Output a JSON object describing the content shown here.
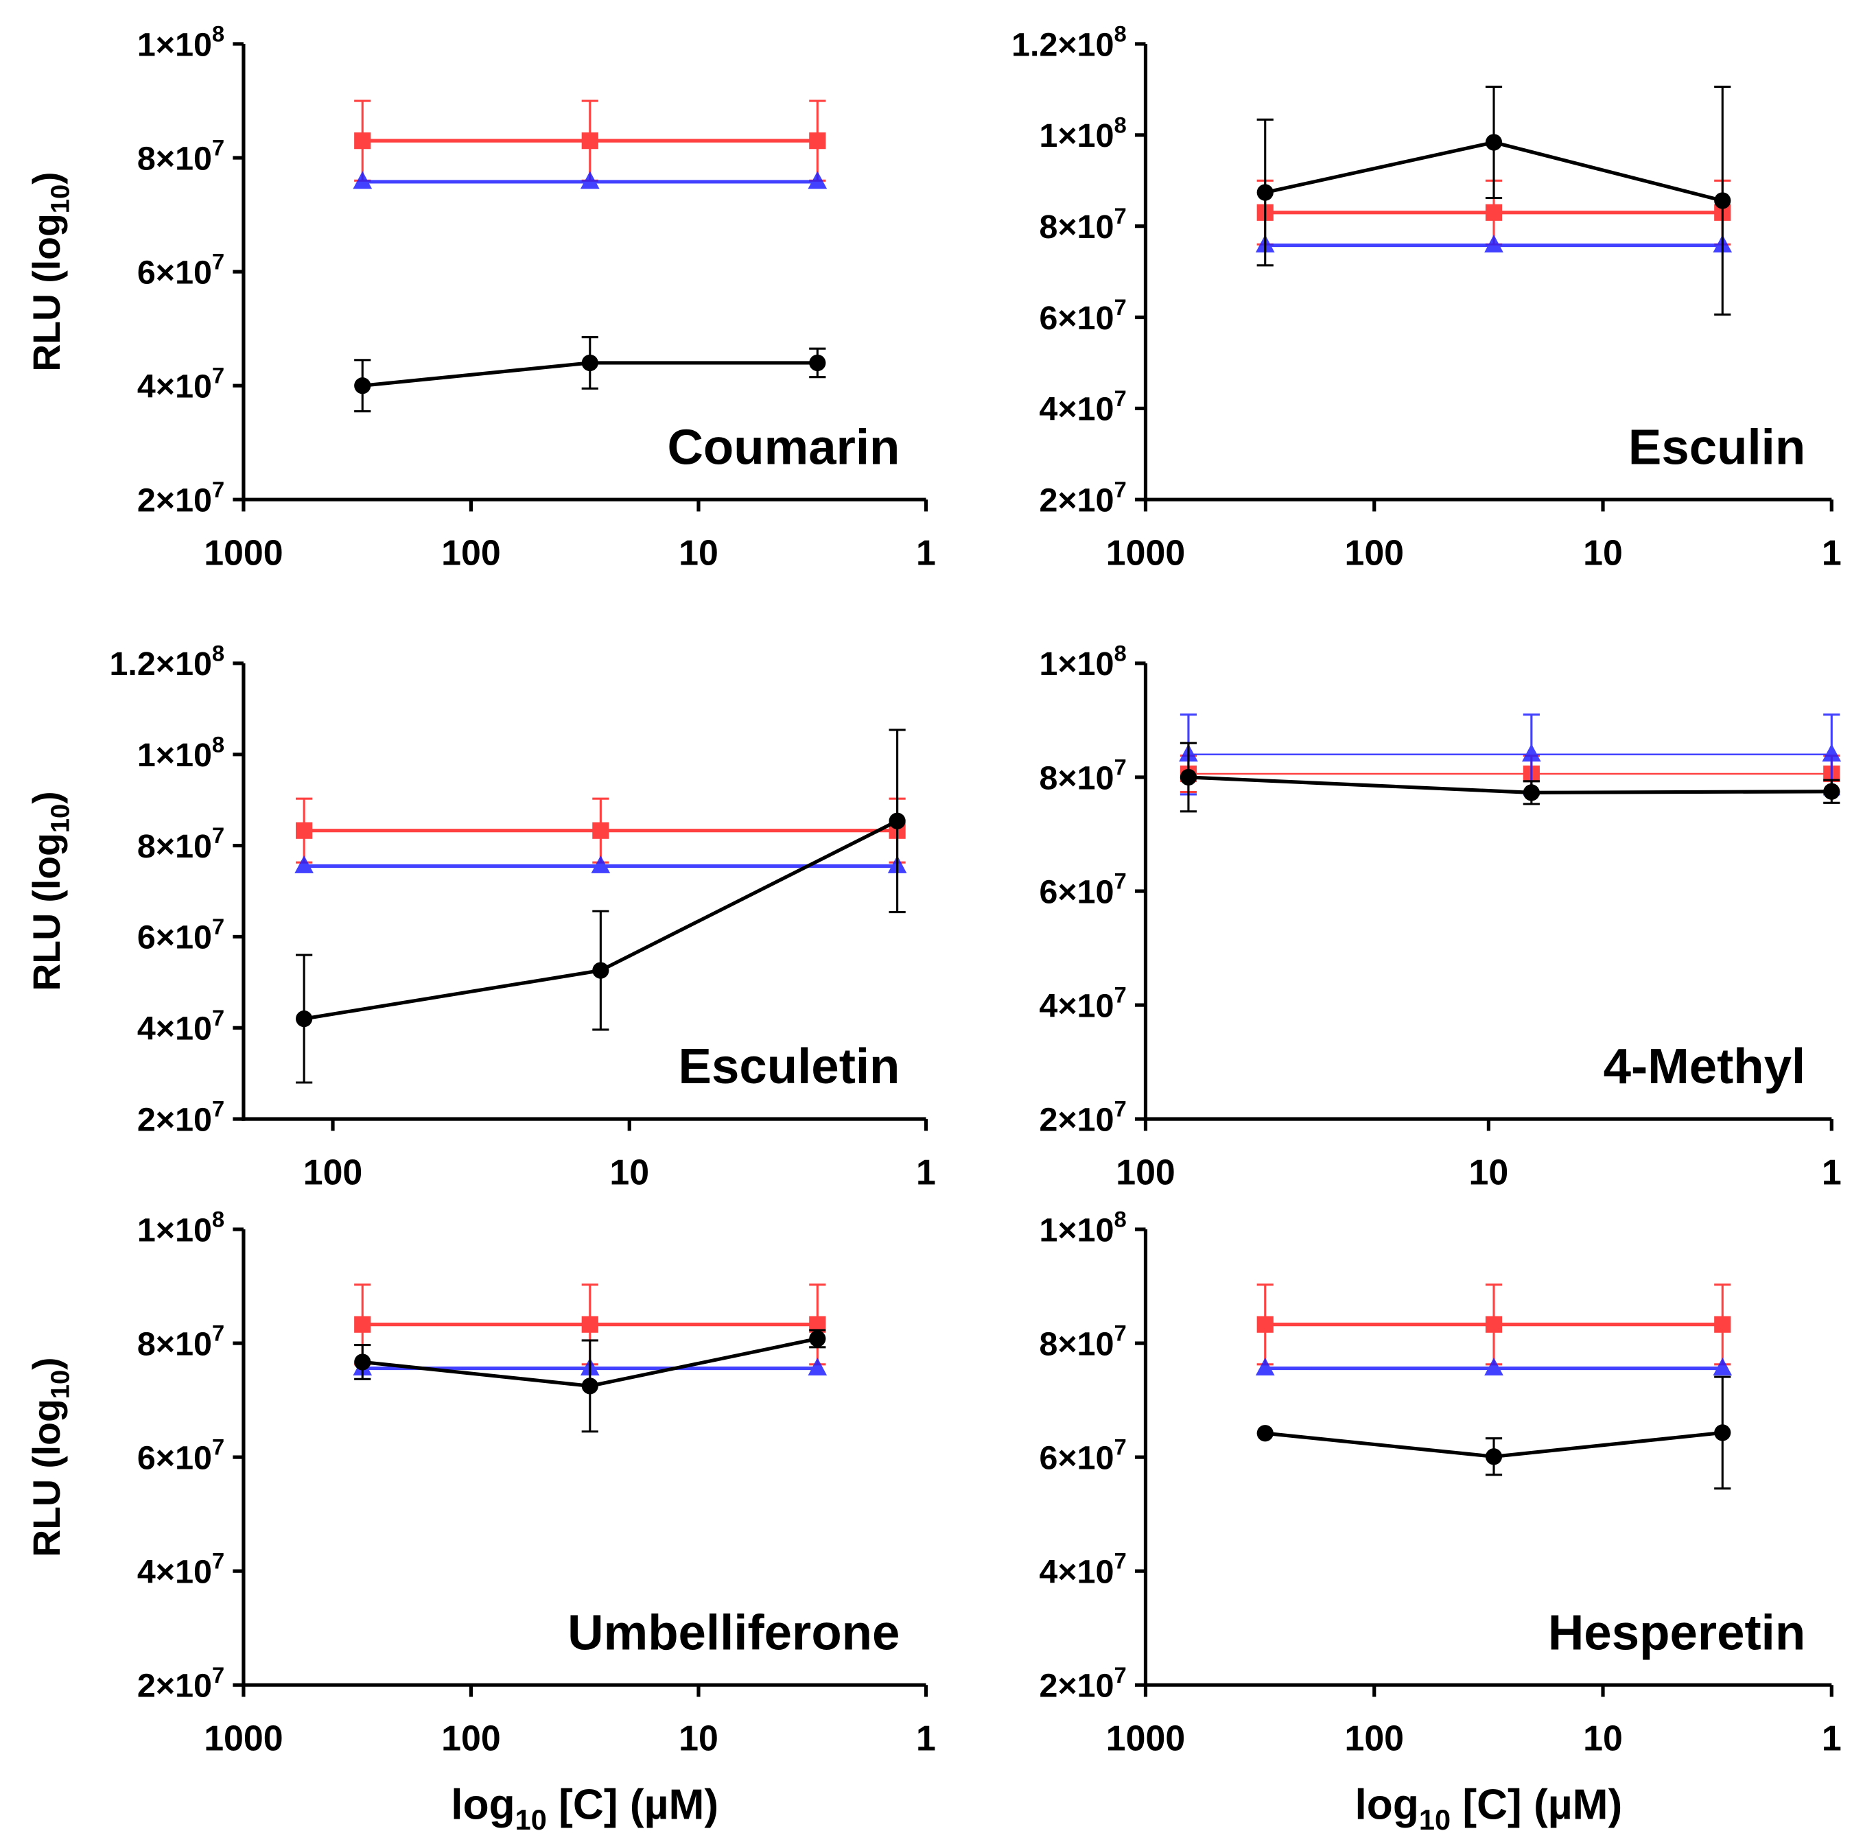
{
  "axis_labels": {
    "y": {
      "main": "RLU (log",
      "sub": "10",
      "end": ")"
    },
    "x": {
      "main": "log",
      "sub": "10",
      "end": " [C] (µM)"
    }
  },
  "colors": {
    "compound": "#000000",
    "red": "#ff2020",
    "blue": "#2020ff"
  },
  "chart_data": [
    {
      "type": "line",
      "title": "Coumarin",
      "xscale": "log",
      "xlim": [
        1000,
        1
      ],
      "ylim": [
        20000000,
        100000000
      ],
      "xticks": [
        "1000",
        "100",
        "10",
        "1"
      ],
      "yticks": [
        {
          "value": 20000000,
          "m": "2×10",
          "e": "7"
        },
        {
          "value": 40000000,
          "m": "4×10",
          "e": "7"
        },
        {
          "value": 60000000,
          "m": "6×10",
          "e": "7"
        },
        {
          "value": 80000000,
          "m": "8×10",
          "e": "7"
        },
        {
          "value": 100000000,
          "m": "1×10",
          "e": "8"
        }
      ],
      "show_ylabel": true,
      "show_xlabel": false,
      "x": [
        300,
        30,
        3
      ],
      "series": [
        {
          "color": "#ff2020",
          "marker": "square",
          "values": [
            83000000,
            83000000,
            83000000
          ],
          "errors": [
            7000000,
            7000000,
            7000000
          ]
        },
        {
          "color": "#2020ff",
          "marker": "triangle",
          "values": [
            75800000,
            75800000,
            75800000
          ],
          "errors": [
            0,
            0,
            0
          ]
        },
        {
          "color": "#000000",
          "marker": "circle",
          "values": [
            40000000,
            44000000,
            44000000
          ],
          "errors": [
            4500000,
            4500000,
            2500000
          ]
        }
      ]
    },
    {
      "type": "line",
      "title": "Esculin",
      "xscale": "log",
      "xlim": [
        1000,
        1
      ],
      "ylim": [
        20000000,
        120000000
      ],
      "xticks": [
        "1000",
        "100",
        "10",
        "1"
      ],
      "yticks": [
        {
          "value": 20000000,
          "m": "2×10",
          "e": "7"
        },
        {
          "value": 40000000,
          "m": "4×10",
          "e": "7"
        },
        {
          "value": 60000000,
          "m": "6×10",
          "e": "7"
        },
        {
          "value": 80000000,
          "m": "8×10",
          "e": "7"
        },
        {
          "value": 100000000,
          "m": "1×10",
          "e": "8"
        },
        {
          "value": 120000000,
          "m": "1.2×10",
          "e": "8"
        }
      ],
      "show_ylabel": false,
      "show_xlabel": false,
      "x": [
        300,
        30,
        3
      ],
      "series": [
        {
          "color": "#ff2020",
          "marker": "square",
          "values": [
            83000000,
            83000000,
            83000000
          ],
          "errors": [
            7000000,
            7000000,
            7000000
          ]
        },
        {
          "color": "#2020ff",
          "marker": "triangle",
          "values": [
            75800000,
            75800000,
            75800000
          ],
          "errors": [
            0,
            0,
            0
          ]
        },
        {
          "color": "#000000",
          "marker": "circle",
          "values": [
            87400000,
            98400000,
            85600000
          ],
          "errors": [
            16000000,
            12200000,
            25000000
          ]
        }
      ]
    },
    {
      "type": "line",
      "title": "Esculetin",
      "xscale": "log",
      "xlim": [
        200,
        1
      ],
      "ylim": [
        20000000,
        120000000
      ],
      "xticks": [
        "100",
        "10",
        "1"
      ],
      "yticks": [
        {
          "value": 20000000,
          "m": "2×10",
          "e": "7"
        },
        {
          "value": 40000000,
          "m": "4×10",
          "e": "7"
        },
        {
          "value": 60000000,
          "m": "6×10",
          "e": "7"
        },
        {
          "value": 80000000,
          "m": "8×10",
          "e": "7"
        },
        {
          "value": 100000000,
          "m": "1×10",
          "e": "8"
        },
        {
          "value": 120000000,
          "m": "1.2×10",
          "e": "8"
        }
      ],
      "show_ylabel": true,
      "show_xlabel": false,
      "x": [
        125,
        12.5,
        1.25
      ],
      "series": [
        {
          "color": "#ff2020",
          "marker": "square",
          "values": [
            83300000,
            83300000,
            83300000
          ],
          "errors": [
            7000000,
            7000000,
            7000000
          ]
        },
        {
          "color": "#2020ff",
          "marker": "triangle",
          "values": [
            75500000,
            75500000,
            75500000
          ],
          "errors": [
            0,
            0,
            0
          ]
        },
        {
          "color": "#000000",
          "marker": "circle",
          "values": [
            42000000,
            52600000,
            85400000
          ],
          "errors": [
            14000000,
            13000000,
            20000000
          ]
        }
      ]
    },
    {
      "type": "line",
      "title": "4-Methyl",
      "xscale": "log",
      "xlim": [
        100,
        1
      ],
      "ylim": [
        20000000,
        100000000
      ],
      "xticks": [
        "100",
        "10",
        "1"
      ],
      "yticks": [
        {
          "value": 20000000,
          "m": "2×10",
          "e": "7"
        },
        {
          "value": 40000000,
          "m": "4×10",
          "e": "7"
        },
        {
          "value": 60000000,
          "m": "6×10",
          "e": "7"
        },
        {
          "value": 80000000,
          "m": "8×10",
          "e": "7"
        },
        {
          "value": 100000000,
          "m": "1×10",
          "e": "8"
        }
      ],
      "show_ylabel": false,
      "show_xlabel": false,
      "x": [
        75,
        7.5,
        1
      ],
      "series": [
        {
          "color": "#ff2020",
          "marker": "square",
          "values": [
            80600000,
            80600000,
            80600000
          ],
          "errors": [
            3200000,
            3200000,
            3200000
          ],
          "thin": true
        },
        {
          "color": "#2020ff",
          "marker": "triangle",
          "values": [
            84000000,
            84000000,
            84000000
          ],
          "errors": [
            7000000,
            7000000,
            7000000
          ],
          "thin": true
        },
        {
          "color": "#000000",
          "marker": "circle",
          "values": [
            80000000,
            77300000,
            77500000
          ],
          "errors": [
            6000000,
            2000000,
            2000000
          ]
        }
      ]
    },
    {
      "type": "line",
      "title": "Umbelliferone",
      "xscale": "log",
      "xlim": [
        1000,
        1
      ],
      "ylim": [
        20000000,
        100000000
      ],
      "xticks": [
        "1000",
        "100",
        "10",
        "1"
      ],
      "yticks": [
        {
          "value": 20000000,
          "m": "2×10",
          "e": "7"
        },
        {
          "value": 40000000,
          "m": "4×10",
          "e": "7"
        },
        {
          "value": 60000000,
          "m": "6×10",
          "e": "7"
        },
        {
          "value": 80000000,
          "m": "8×10",
          "e": "7"
        },
        {
          "value": 100000000,
          "m": "1×10",
          "e": "8"
        }
      ],
      "show_ylabel": true,
      "show_xlabel": true,
      "x": [
        300,
        30,
        3
      ],
      "series": [
        {
          "color": "#ff2020",
          "marker": "square",
          "values": [
            83300000,
            83300000,
            83300000
          ],
          "errors": [
            7000000,
            7000000,
            7000000
          ]
        },
        {
          "color": "#2020ff",
          "marker": "triangle",
          "values": [
            75600000,
            75600000,
            75600000
          ],
          "errors": [
            0,
            0,
            0
          ]
        },
        {
          "color": "#000000",
          "marker": "circle",
          "values": [
            76700000,
            72500000,
            80800000
          ],
          "errors": [
            3000000,
            8000000,
            1500000
          ]
        }
      ]
    },
    {
      "type": "line",
      "title": "Hesperetin",
      "xscale": "log",
      "xlim": [
        1000,
        1
      ],
      "ylim": [
        20000000,
        100000000
      ],
      "xticks": [
        "1000",
        "100",
        "10",
        "1"
      ],
      "yticks": [
        {
          "value": 20000000,
          "m": "2×10",
          "e": "7"
        },
        {
          "value": 40000000,
          "m": "4×10",
          "e": "7"
        },
        {
          "value": 60000000,
          "m": "6×10",
          "e": "7"
        },
        {
          "value": 80000000,
          "m": "8×10",
          "e": "7"
        },
        {
          "value": 100000000,
          "m": "1×10",
          "e": "8"
        }
      ],
      "show_ylabel": false,
      "show_xlabel": true,
      "x": [
        300,
        30,
        3
      ],
      "series": [
        {
          "color": "#ff2020",
          "marker": "square",
          "values": [
            83300000,
            83300000,
            83300000
          ],
          "errors": [
            7000000,
            7000000,
            7000000
          ]
        },
        {
          "color": "#2020ff",
          "marker": "triangle",
          "values": [
            75600000,
            75600000,
            75600000
          ],
          "errors": [
            0,
            0,
            0
          ]
        },
        {
          "color": "#000000",
          "marker": "circle",
          "values": [
            64200000,
            60100000,
            64300000
          ],
          "errors": [
            0,
            3200000,
            9800000
          ]
        }
      ]
    }
  ]
}
